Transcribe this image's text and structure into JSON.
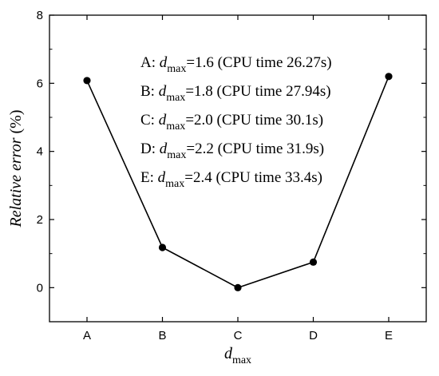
{
  "chart_data": {
    "type": "line",
    "categories": [
      "A",
      "B",
      "C",
      "D",
      "E"
    ],
    "series": [
      {
        "values": [
          6.08,
          1.18,
          0.0,
          0.75,
          6.2
        ]
      }
    ],
    "ylabel": {
      "text": "Relative error",
      "unit": "(%)"
    },
    "xlabel": {
      "base": "d",
      "sub": "max"
    },
    "ylim": [
      -1,
      8
    ],
    "yticks": [
      0,
      2,
      4,
      6,
      8
    ],
    "grid": false,
    "marker": "circle",
    "line_color": "#000000",
    "annotations": [
      {
        "prefix": "A: ",
        "var": "d",
        "sub": "max",
        "rest": "=1.6 (CPU time 26.27s)"
      },
      {
        "prefix": "B: ",
        "var": "d",
        "sub": "max",
        "rest": "=1.8 (CPU time 27.94s)"
      },
      {
        "prefix": "C: ",
        "var": "d",
        "sub": "max",
        "rest": "=2.0 (CPU time 30.1s)"
      },
      {
        "prefix": "D: ",
        "var": "d",
        "sub": "max",
        "rest": "=2.2 (CPU time 31.9s)"
      },
      {
        "prefix": "E: ",
        "var": "d",
        "sub": "max",
        "rest": "=2.4 (CPU time 33.4s)"
      }
    ]
  }
}
